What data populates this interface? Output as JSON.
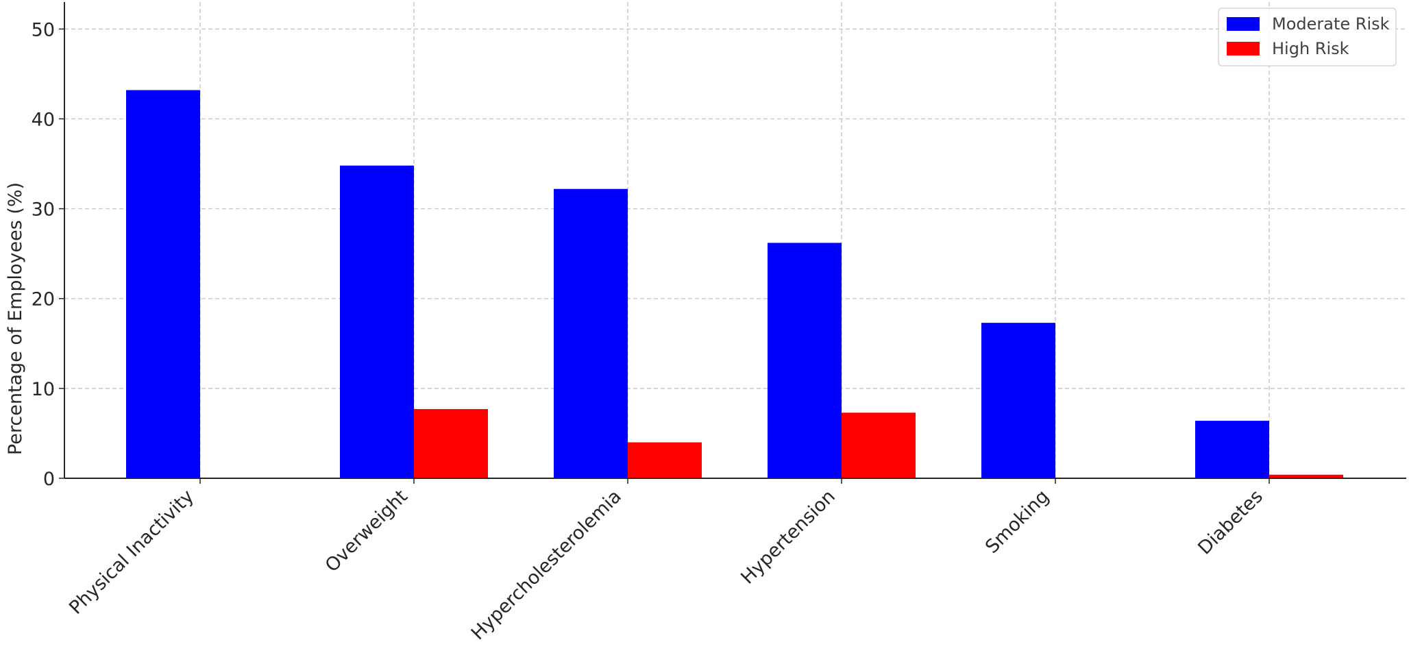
{
  "chart_data": {
    "type": "bar",
    "title": "",
    "xlabel": "",
    "ylabel": "Percentage of Employees (%)",
    "ylim": [
      0,
      53
    ],
    "yticks": [
      0,
      10,
      20,
      30,
      40,
      50
    ],
    "grid": true,
    "legend_position": "top-right",
    "categories": [
      "Physical Inactivity",
      "Overweight",
      "Hypercholesterolemia",
      "Hypertension",
      "Smoking",
      "Diabetes"
    ],
    "series": [
      {
        "name": "Moderate Risk",
        "color": "#0000ff",
        "values": [
          43.2,
          34.8,
          32.2,
          26.2,
          17.3,
          6.4
        ]
      },
      {
        "name": "High Risk",
        "color": "#ff0000",
        "values": [
          0,
          7.7,
          4.0,
          7.3,
          0,
          0.4
        ]
      }
    ]
  }
}
